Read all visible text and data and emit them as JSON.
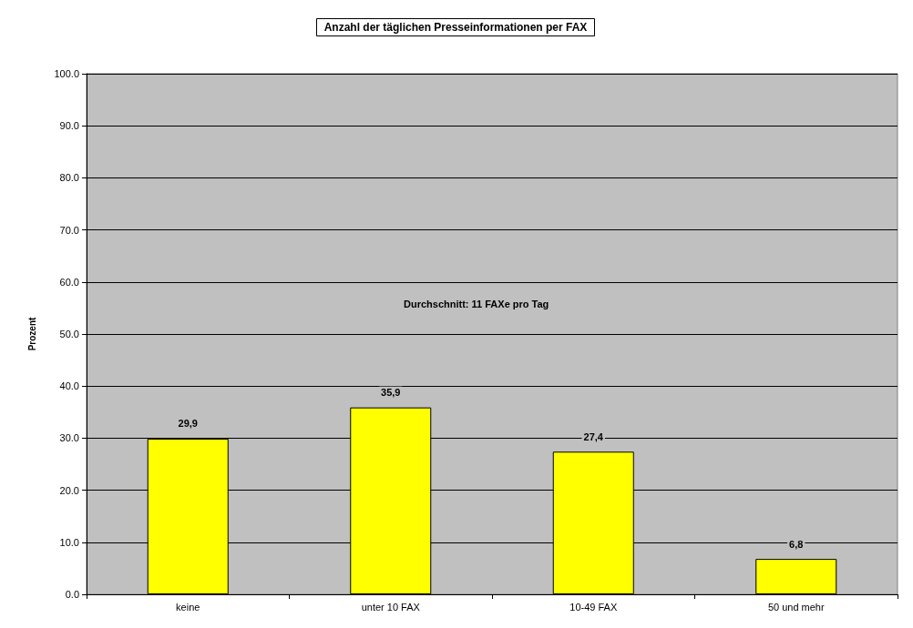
{
  "chart_data": {
    "type": "bar",
    "title": "Anzahl der täglichen Presseinformationen per FAX",
    "ylabel": "Prozent",
    "categories": [
      "keine",
      "unter 10 FAX",
      "10-49 FAX",
      "50 und mehr"
    ],
    "values": [
      29.9,
      35.9,
      27.4,
      6.8
    ],
    "color": "#ffff00",
    "value_labels": [
      "29,9",
      "35,9",
      "27,4",
      "6,8"
    ],
    "ylim": [
      0,
      100
    ],
    "yticks": [
      {
        "value": 0,
        "label": "0.0"
      },
      {
        "value": 10,
        "label": "10.0"
      },
      {
        "value": 20,
        "label": "20.0"
      },
      {
        "value": 30,
        "label": "30.0"
      },
      {
        "value": 40,
        "label": "40.0"
      },
      {
        "value": 50,
        "label": "50.0"
      },
      {
        "value": 60,
        "label": "60.0"
      },
      {
        "value": 70,
        "label": "70.0"
      },
      {
        "value": 80,
        "label": "80.0"
      },
      {
        "value": 90,
        "label": "90.0"
      },
      {
        "value": 100,
        "label": "100.0"
      }
    ],
    "annotations": [
      "Durchschnitt: 11 FAXe pro Tag"
    ],
    "grid": "y"
  }
}
